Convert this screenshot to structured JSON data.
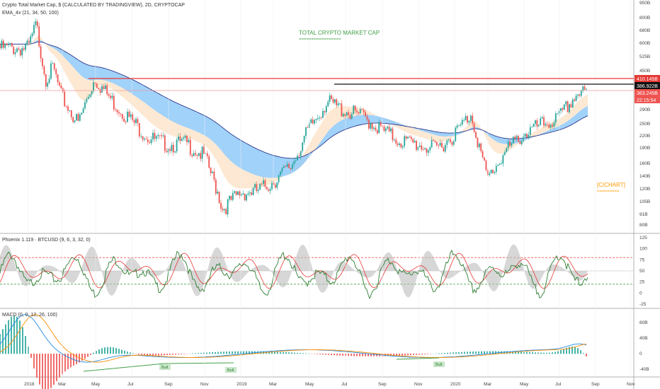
{
  "colors": {
    "up": "#26a69a",
    "down": "#ef5350",
    "ema_band": "#90caf9",
    "ema_fill": "#fce4c8",
    "red_line": "#e53935",
    "black_line": "#111111",
    "title_green": "#43a047",
    "c_chart": "#ff9800"
  },
  "header": {
    "title": "Crypto Total Market Cap, $ (CALCULATED BY TRADINGVIEW), 2D, CRYPTOCAP",
    "indicator": "EMA_4x (21, 34, 50, 100)"
  },
  "annotations": {
    "main_title": "TOTAL CRYPTO MARKET CAP",
    "main_title_underline": "=================",
    "watermark": "[C/CHART]",
    "watermark_underline": "========="
  },
  "price_labels": {
    "red": "410.145B",
    "black": "386.922B",
    "current": "363.245B",
    "countdown": "22:15:54"
  },
  "osc_header": "Phoenix 1.119 · BTCUSD (9, 6, 3, 32, 0)",
  "macd_header": "MACD (0, 0, 12, 26, 100)",
  "bull_labels": [
    "Bull",
    "Bull",
    "Bull"
  ],
  "chart_data": {
    "type": "line",
    "title": "Crypto Total Market Cap, $ (CALCULATED BY TRADINGVIEW), 2D, CRYPTOCAP",
    "x_ticks": [
      "2018",
      "Mar",
      "May",
      "Jul",
      "Sep",
      "Nov",
      "2019",
      "Mar",
      "May",
      "Jul",
      "Sep",
      "Nov",
      "2020",
      "Mar",
      "May",
      "Jul",
      "Sep",
      "Nov"
    ],
    "y_ticks": [
      "950B",
      "800B",
      "680B",
      "600B",
      "525B",
      "450B",
      "363.245B",
      "290B",
      "250B",
      "220B",
      "190B",
      "160B",
      "140B",
      "120B",
      "105B",
      "91B",
      "80B"
    ],
    "price_path": [
      [
        "2018-01",
        600
      ],
      [
        "2018-01-15",
        780
      ],
      [
        "2018-02",
        430
      ],
      [
        "2018-02-15",
        480
      ],
      [
        "2018-03",
        350
      ],
      [
        "2018-04",
        260
      ],
      [
        "2018-05",
        430
      ],
      [
        "2018-06",
        330
      ],
      [
        "2018-07",
        270
      ],
      [
        "2018-08",
        220
      ],
      [
        "2018-09",
        205
      ],
      [
        "2018-10",
        208
      ],
      [
        "2018-11",
        180
      ],
      [
        "2018-11-25",
        118
      ],
      [
        "2018-12",
        100
      ],
      [
        "2019-01",
        120
      ],
      [
        "2019-02",
        122
      ],
      [
        "2019-03",
        135
      ],
      [
        "2019-04",
        160
      ],
      [
        "2019-05",
        240
      ],
      [
        "2019-06",
        330
      ],
      [
        "2019-07",
        300
      ],
      [
        "2019-08",
        280
      ],
      [
        "2019-09",
        240
      ],
      [
        "2019-10",
        215
      ],
      [
        "2019-11",
        205
      ],
      [
        "2019-12",
        195
      ],
      [
        "2020-01",
        230
      ],
      [
        "2020-02",
        290
      ],
      [
        "2020-03",
        140
      ],
      [
        "2020-04",
        190
      ],
      [
        "2020-05",
        230
      ],
      [
        "2020-06",
        255
      ],
      [
        "2020-07",
        275
      ],
      [
        "2020-08",
        363
      ]
    ],
    "horizontal_levels": [
      410.145,
      386.922
    ],
    "osc_levels": [
      "125",
      "100",
      "75",
      "50",
      "25",
      "0",
      "-25"
    ],
    "macd_levels": [
      "80B",
      "40B",
      "0",
      "-40B"
    ]
  }
}
